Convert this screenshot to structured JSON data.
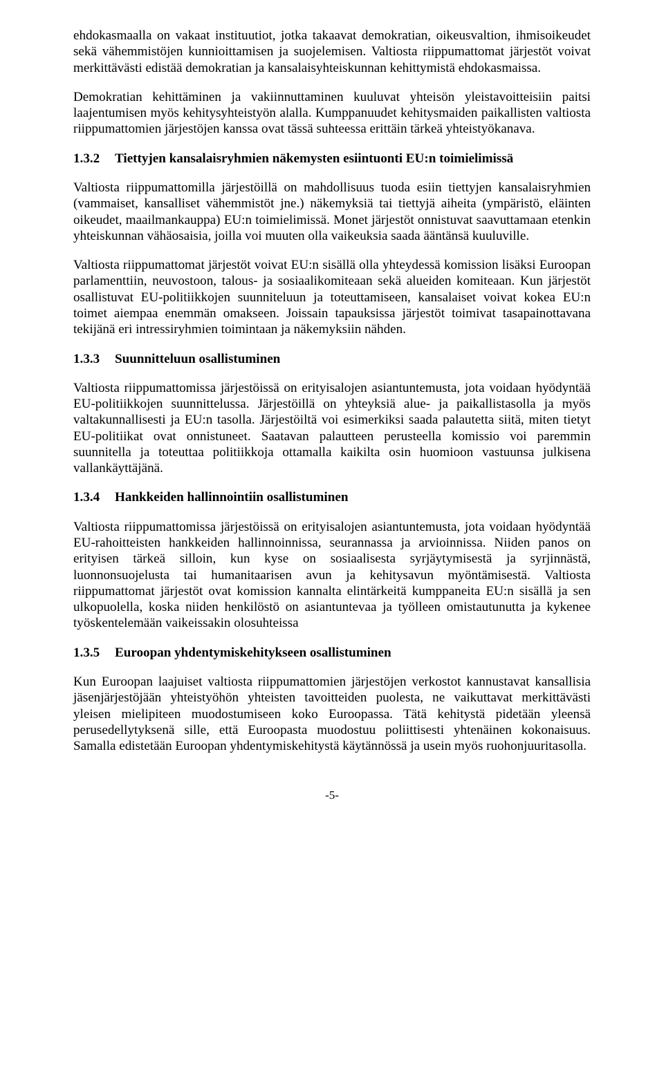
{
  "paragraphs": {
    "p1": "ehdokasmaalla on vakaat instituutiot, jotka takaavat demokratian, oikeusvaltion, ihmisoikeudet sekä vähemmistöjen kunnioittamisen ja suojelemisen. Valtiosta riippumattomat järjestöt voivat merkittävästi edistää demokratian ja kansalaisyhteiskunnan kehittymistä ehdokasmaissa.",
    "p2": "Demokratian kehittäminen ja vakiinnuttaminen kuuluvat yhteisön yleistavoitteisiin paitsi laajentumisen myös kehitysyhteistyön alalla. Kumppanuudet kehitysmaiden paikallisten valtiosta riippumattomien järjestöjen kanssa ovat tässä suhteessa erittäin tärkeä yhteistyökanava.",
    "p3": "Valtiosta riippumattomilla järjestöillä on mahdollisuus tuoda esiin tiettyjen kansalaisryhmien (vammaiset, kansalliset vähemmistöt jne.) näkemyksiä tai tiettyjä aiheita (ympäristö, eläinten oikeudet, maailmankauppa) EU:n toimielimissä. Monet järjestöt onnistuvat saavuttamaan etenkin yhteiskunnan vähäosaisia, joilla voi muuten olla vaikeuksia saada ääntänsä kuuluville.",
    "p4": "Valtiosta riippumattomat järjestöt voivat EU:n sisällä olla yhteydessä komission lisäksi Euroopan parlamenttiin, neuvostoon, talous- ja sosiaalikomiteaan sekä alueiden komiteaan. Kun järjestöt osallistuvat EU-politiikkojen suunniteluun ja toteuttamiseen, kansalaiset voivat kokea EU:n toimet aiempaa enemmän omakseen. Joissain tapauksissa järjestöt toimivat tasapainottavana tekijänä eri intressiryhmien toimintaan ja näkemyksiin nähden.",
    "p5": "Valtiosta riippumattomissa järjestöissä on erityisalojen asiantuntemusta, jota voidaan hyödyntää EU-politiikkojen suunnittelussa. Järjestöillä on yhteyksiä alue- ja paikallistasolla ja myös valtakunnallisesti ja EU:n tasolla. Järjestöiltä voi esimerkiksi saada palautetta siitä, miten tietyt EU-politiikat ovat onnistuneet. Saatavan palautteen perusteella komissio voi paremmin suunnitella ja toteuttaa politiikkoja ottamalla kaikilta osin huomioon vastuunsa julkisena vallankäyttäjänä.",
    "p6": "Valtiosta riippumattomissa järjestöissä on erityisalojen asiantuntemusta, jota voidaan hyödyntää EU-rahoitteisten hankkeiden hallinnoinnissa, seurannassa ja arvioinnissa. Niiden panos on erityisen tärkeä silloin, kun kyse on sosiaalisesta syrjäytymisestä ja syrjinnästä, luonnonsuojelusta tai humanitaarisen avun ja kehitysavun myöntämisestä. Valtiosta riippumattomat järjestöt ovat komission kannalta elintärkeitä kumppaneita EU:n sisällä ja sen ulkopuolella, koska niiden henkilöstö on asiantuntevaa ja työlleen omistautunutta ja kykenee työskentelemään vaikeissakin olosuhteissa",
    "p7": "Kun Euroopan laajuiset valtiosta riippumattomien järjestöjen verkostot kannustavat kansallisia jäsenjärjestöjään yhteistyöhön yhteisten tavoitteiden puolesta, ne vaikuttavat merkittävästi yleisen mielipiteen muodostumiseen koko Euroopassa. Tätä kehitystä pidetään yleensä perusedellytyksenä sille, että Euroopasta muodostuu poliittisesti yhtenäinen kokonaisuus. Samalla edistetään Euroopan yhdentymiskehitystä käytännössä ja usein myös ruohonjuuritasolla."
  },
  "headings": {
    "h132": {
      "num": "1.3.2",
      "text": "Tiettyjen kansalaisryhmien näkemysten esiintuonti EU:n toimielimissä"
    },
    "h133": {
      "num": "1.3.3",
      "text": "Suunnitteluun osallistuminen"
    },
    "h134": {
      "num": "1.3.4",
      "text": "Hankkeiden hallinnointiin osallistuminen"
    },
    "h135": {
      "num": "1.3.5",
      "text": "Euroopan yhdentymiskehitykseen osallistuminen"
    }
  },
  "footer": {
    "page": "-5-"
  }
}
